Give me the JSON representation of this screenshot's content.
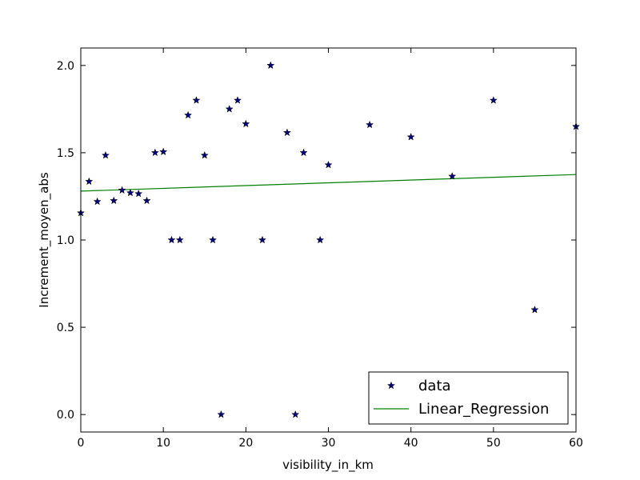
{
  "chart_data": {
    "type": "scatter",
    "title": "",
    "xlabel": "visibility_in_km",
    "ylabel": "Increment_moyen_abs",
    "xlim": [
      0,
      60
    ],
    "ylim": [
      -0.1,
      2.1
    ],
    "xticks": [
      "0",
      "10",
      "20",
      "30",
      "40",
      "50",
      "60"
    ],
    "yticks": [
      "0.0",
      "0.5",
      "1.0",
      "1.5",
      "2.0"
    ],
    "grid": false,
    "legend_position": "bottom-right",
    "series": [
      {
        "name": "data",
        "kind": "scatter",
        "marker": "star",
        "color": "#000080",
        "points": [
          [
            0,
            1.155
          ],
          [
            1,
            1.335
          ],
          [
            2,
            1.22
          ],
          [
            3,
            1.485
          ],
          [
            4,
            1.225
          ],
          [
            5,
            1.285
          ],
          [
            6,
            1.27
          ],
          [
            7,
            1.265
          ],
          [
            8,
            1.225
          ],
          [
            9,
            1.5
          ],
          [
            10,
            1.505
          ],
          [
            11,
            1.0
          ],
          [
            12,
            1.0
          ],
          [
            13,
            1.715
          ],
          [
            14,
            1.8
          ],
          [
            15,
            1.485
          ],
          [
            16,
            1.0
          ],
          [
            17,
            0.0
          ],
          [
            18,
            1.75
          ],
          [
            19,
            1.8
          ],
          [
            20,
            1.665
          ],
          [
            22,
            1.0
          ],
          [
            23,
            2.0
          ],
          [
            25,
            1.615
          ],
          [
            26,
            0.0
          ],
          [
            27,
            1.5
          ],
          [
            29,
            1.0
          ],
          [
            30,
            1.43
          ],
          [
            35,
            1.66
          ],
          [
            40,
            1.59
          ],
          [
            45,
            1.365
          ],
          [
            50,
            1.8
          ],
          [
            55,
            0.6
          ],
          [
            60,
            1.65
          ]
        ]
      },
      {
        "name": "Linear_Regression",
        "kind": "line",
        "color": "#008000",
        "points": [
          [
            0,
            1.28
          ],
          [
            60,
            1.375
          ]
        ]
      }
    ]
  }
}
